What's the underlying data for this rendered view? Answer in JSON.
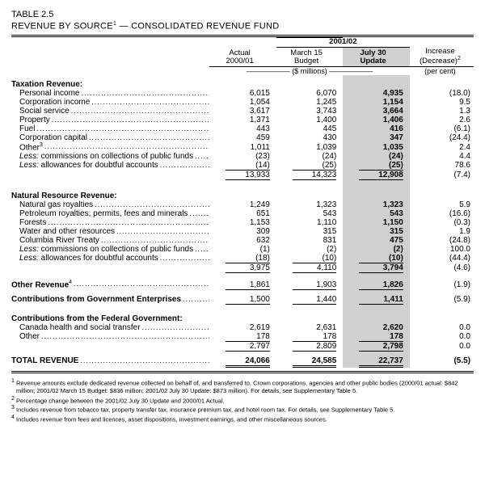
{
  "table_number": "TABLE 2.5",
  "title_a": "REVENUE BY SOURCE",
  "title_sup": "1",
  "title_b": " — CONSOLIDATED REVENUE FUND",
  "headers": {
    "actual_a": "Actual",
    "actual_b": "2000/01",
    "span": "2001/02",
    "march_a": "March 15",
    "march_b": "Budget",
    "july_a": "July 30",
    "july_b": "Update",
    "incr_a": "Increase",
    "incr_b": "(Decrease)",
    "incr_sup": "2",
    "unit_mil": "($ millions)",
    "unit_pct": "(per cent)"
  },
  "sections": {
    "tax": {
      "head": "Taxation Revenue:",
      "rows": [
        {
          "label": "Personal income",
          "c": [
            "6,015",
            "6,070",
            "4,935",
            "(18.0)"
          ]
        },
        {
          "label": "Corporation income",
          "c": [
            "1,054",
            "1,245",
            "1,154",
            "9.5"
          ]
        },
        {
          "label": "Social service",
          "c": [
            "3,617",
            "3,743",
            "3,664",
            "1.3"
          ]
        },
        {
          "label": "Property",
          "c": [
            "1,371",
            "1,400",
            "1,406",
            "2.6"
          ]
        },
        {
          "label": "Fuel",
          "c": [
            "443",
            "445",
            "416",
            "(6.1)"
          ]
        },
        {
          "label": "Corporation capital",
          "c": [
            "459",
            "430",
            "347",
            "(24.4)"
          ]
        },
        {
          "label": "Other",
          "sup": "3",
          "c": [
            "1,011",
            "1,039",
            "1,035",
            "2.4"
          ]
        },
        {
          "label": "Less: commissions on collections of public funds",
          "ital": true,
          "c": [
            "(23)",
            "(24)",
            "(24)",
            "4.4"
          ]
        },
        {
          "label": "Less: allowances for doubtful accounts",
          "ital": true,
          "c": [
            "(14)",
            "(25)",
            "(25)",
            "78.6"
          ],
          "rule": true
        }
      ],
      "subtotal": [
        "13,933",
        "14,323",
        "12,908",
        "(7.4)"
      ]
    },
    "nat": {
      "head": "Natural Resource Revenue:",
      "rows": [
        {
          "label": "Natural gas royalties",
          "c": [
            "1,249",
            "1,323",
            "1,323",
            "5.9"
          ]
        },
        {
          "label": "Petroleum royalties, permits, fees and minerals",
          "c": [
            "651",
            "543",
            "543",
            "(16.6)"
          ]
        },
        {
          "label": "Forests",
          "c": [
            "1,153",
            "1,110",
            "1,150",
            "(0.3)"
          ]
        },
        {
          "label": "Water and other resources",
          "c": [
            "309",
            "315",
            "315",
            "1.9"
          ]
        },
        {
          "label": "Columbia River Treaty",
          "c": [
            "632",
            "831",
            "475",
            "(24.8)"
          ]
        },
        {
          "label": "Less: commissions on collections of public funds",
          "ital": true,
          "c": [
            "(1)",
            "(2)",
            "(2)",
            "100.0"
          ]
        },
        {
          "label": "Less: allowances for doubtful accounts",
          "ital": true,
          "c": [
            "(18)",
            "(10)",
            "(10)",
            "(44.4)"
          ],
          "rule": true
        }
      ],
      "subtotal": [
        "3,975",
        "4,110",
        "3,794",
        "(4.6)"
      ]
    },
    "other": {
      "label": "Other Revenue",
      "sup": "4",
      "c": [
        "1,861",
        "1,903",
        "1,826",
        "(1.9)"
      ]
    },
    "contrib_ent": {
      "label": "Contributions from Government Enterprises",
      "c": [
        "1,500",
        "1,440",
        "1,411",
        "(5.9)"
      ]
    },
    "fed": {
      "head": "Contributions from the Federal Government:",
      "rows": [
        {
          "label": "Canada health and social transfer",
          "c": [
            "2,619",
            "2,631",
            "2,620",
            "0.0"
          ]
        },
        {
          "label": "Other",
          "c": [
            "178",
            "178",
            "178",
            "0.0"
          ],
          "rule": true
        }
      ],
      "subtotal": [
        "2,797",
        "2,809",
        "2,798",
        "0.0"
      ]
    },
    "total": {
      "label": "TOTAL REVENUE",
      "c": [
        "24,066",
        "24,585",
        "22,737",
        "(5.5)"
      ]
    }
  },
  "footnotes": [
    "Revenue amounts exclude dedicated revenue collected on behalf of, and transferred to, Crown corporations, agencies and other public bodies (2000/01 actual: $842 million; 2001/02 March 15 Budget: $836 million; 2001/02 July 30 Update: $873 million). For details, see Supplementary Table 5.",
    "Percentage change between the 2001/02 July 30 Update and 2000/01 Actual.",
    "Includes revenue from tobacco tax, property transfer tax, insurance premium tax, and hotel room tax. For details, see Supplementary Table 5.",
    "Includes revenue from fees and licences, asset dispositions, investment earnings, and other miscellaneous sources."
  ]
}
